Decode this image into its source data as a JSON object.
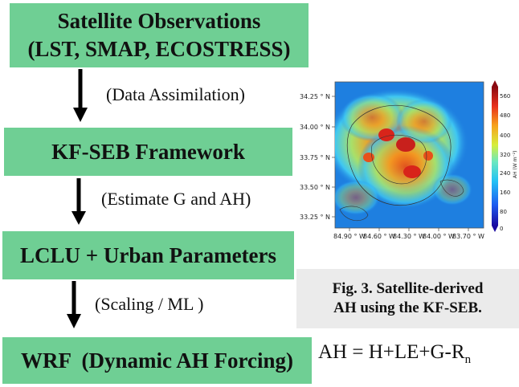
{
  "flow": {
    "box1": {
      "line1": "Satellite Observations",
      "line2": "(LST, SMAP, ECOSTRESS)"
    },
    "step1": "(Data Assimilation)",
    "box2": "KF-SEB Framework",
    "step2": "(Estimate G and AH)",
    "box3": "LCLU + Urban Parameters",
    "step3": "(Scaling / ML )",
    "box4": "WRF  (Dynamic AH Forcing)"
  },
  "caption": {
    "line1": "Fig. 3. Satellite-derived",
    "line2": "AH using the KF-SEB."
  },
  "equation": {
    "main": "AH = H+LE+G-R",
    "sub": "n"
  },
  "map": {
    "y_ticks": [
      "34.25 ° N",
      "34.00 ° N",
      "33.75 ° N",
      "33.50 ° N",
      "33.25 ° N"
    ],
    "x_ticks": [
      "84.90 ° W",
      "84.60 ° W",
      "84.30 ° W",
      "84.00 ° W",
      "83.70 ° W"
    ],
    "colorbar_ticks": [
      "560",
      "480",
      "400",
      "320",
      "240",
      "160",
      "80",
      "0"
    ],
    "colorbar_label": "AH (W m⁻²)"
  },
  "colors": {
    "box_fill": "#6fcf94",
    "caption_bg": "#ebebeb",
    "map_bg": "#1e7fe0"
  }
}
